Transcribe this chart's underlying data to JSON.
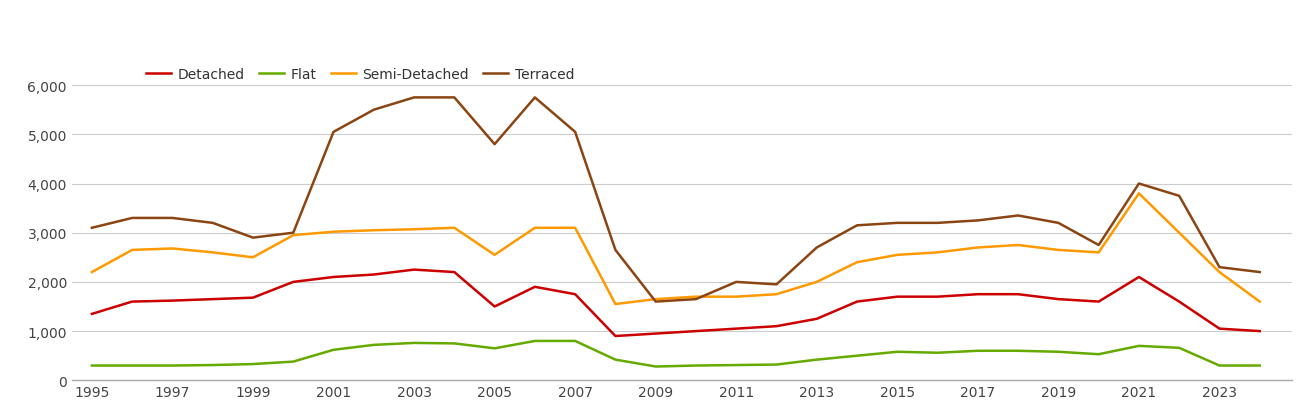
{
  "years": [
    1995,
    1996,
    1997,
    1998,
    1999,
    2000,
    2001,
    2002,
    2003,
    2004,
    2005,
    2006,
    2007,
    2008,
    2009,
    2010,
    2011,
    2012,
    2013,
    2014,
    2015,
    2016,
    2017,
    2018,
    2019,
    2020,
    2021,
    2022,
    2023,
    2024
  ],
  "detached": [
    1350,
    1600,
    1620,
    1650,
    1680,
    2000,
    2100,
    2150,
    2250,
    2200,
    1500,
    1900,
    1750,
    900,
    950,
    1000,
    1050,
    1100,
    1250,
    1600,
    1700,
    1700,
    1750,
    1750,
    1650,
    1600,
    2100,
    1600,
    1050,
    1000
  ],
  "flat": [
    300,
    300,
    300,
    310,
    330,
    380,
    620,
    720,
    760,
    750,
    650,
    800,
    800,
    420,
    280,
    300,
    310,
    320,
    420,
    500,
    580,
    560,
    600,
    600,
    580,
    530,
    700,
    660,
    300,
    300
  ],
  "semi_detached": [
    2200,
    2650,
    2680,
    2600,
    2500,
    2950,
    3020,
    3050,
    3070,
    3100,
    2550,
    3100,
    3100,
    1550,
    1650,
    1700,
    1700,
    1750,
    2000,
    2400,
    2550,
    2600,
    2700,
    2750,
    2650,
    2600,
    3800,
    3000,
    2200,
    1600
  ],
  "terraced": [
    3100,
    3300,
    3300,
    3200,
    2900,
    3000,
    5050,
    5500,
    5750,
    5750,
    4800,
    5750,
    5050,
    2650,
    1600,
    1650,
    2000,
    1950,
    2700,
    3150,
    3200,
    3200,
    3250,
    3350,
    3200,
    2750,
    4000,
    3750,
    2300,
    2200
  ],
  "series_colors": {
    "detached": "#cc0000",
    "flat": "#66aa00",
    "semi_detached": "#ff9900",
    "terraced": "#8B4513"
  },
  "ylim": [
    0,
    6500
  ],
  "yticks": [
    0,
    1000,
    2000,
    3000,
    4000,
    5000,
    6000
  ],
  "ytick_labels": [
    "0",
    "1,000",
    "2,000",
    "3,000",
    "4,000",
    "5,000",
    "6,000"
  ],
  "xticks": [
    1995,
    1997,
    1999,
    2001,
    2003,
    2005,
    2007,
    2009,
    2011,
    2013,
    2015,
    2017,
    2019,
    2021,
    2023
  ],
  "xlim_left": 1994.5,
  "xlim_right": 2024.8,
  "background_color": "#ffffff",
  "grid_color": "#cccccc",
  "line_width": 1.8,
  "legend_items": [
    {
      "label": "Detached",
      "color": "#cc0000"
    },
    {
      "label": "Flat",
      "color": "#66aa00"
    },
    {
      "label": "Semi-Detached",
      "color": "#ff9900"
    },
    {
      "label": "Terraced",
      "color": "#8B4513"
    }
  ]
}
